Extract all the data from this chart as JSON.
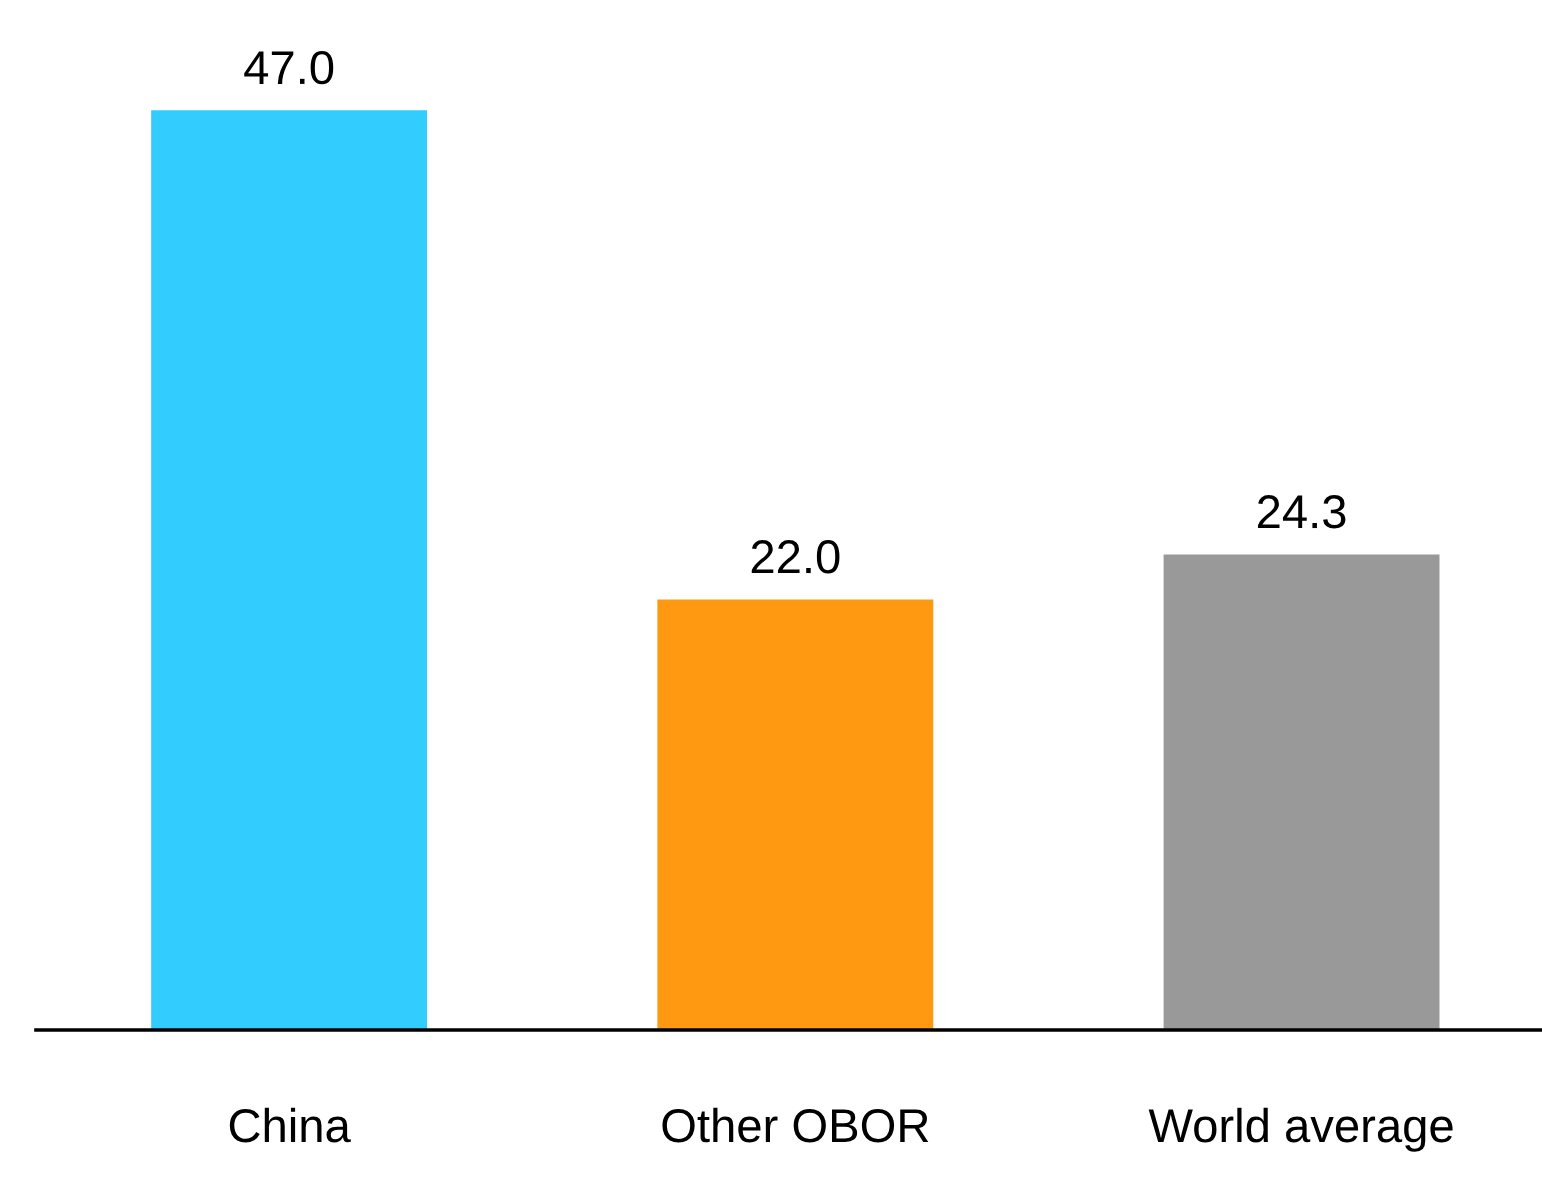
{
  "chart_data": {
    "type": "bar",
    "categories": [
      "China",
      "Other OBOR",
      "World average"
    ],
    "values": [
      47.0,
      22.0,
      24.3
    ],
    "colors": [
      "#33ccff",
      "#ff9911",
      "#999999"
    ],
    "value_labels": [
      "47.0",
      "22.0",
      "24.3"
    ],
    "grid": false,
    "legend": false
  }
}
